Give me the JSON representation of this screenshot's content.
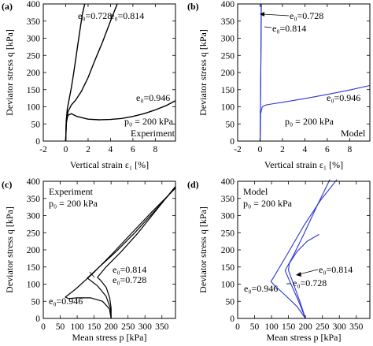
{
  "colors": {
    "experiment": "#000000",
    "model": "#2a35d6"
  },
  "chart_data": [
    {
      "panel": "(a)",
      "type": "line",
      "xlabel": "Vertical strain ε₁ [%]",
      "ylabel": "Deviator stress q [kPa]",
      "xlim": [
        -2,
        9.8
      ],
      "ylim": [
        0,
        400
      ],
      "xticks": [
        -2,
        0,
        2,
        4,
        6,
        8
      ],
      "yticks": [
        0,
        50,
        100,
        150,
        200,
        250,
        300,
        350,
        400
      ],
      "notes": [
        "p₀ = 200 kPa",
        "Experiment"
      ],
      "series": [
        {
          "name": "e₀=0.728",
          "x": [
            0,
            0.05,
            0.15,
            0.3,
            0.5,
            0.7,
            0.9,
            1.1,
            1.3,
            1.5,
            1.7
          ],
          "y": [
            0,
            60,
            95,
            120,
            155,
            195,
            240,
            285,
            330,
            372,
            400
          ]
        },
        {
          "name": "e₀=0.814",
          "x": [
            0,
            0.05,
            0.2,
            0.5,
            0.9,
            1.4,
            2.0,
            2.6,
            3.3,
            4.0,
            4.6
          ],
          "y": [
            0,
            50,
            85,
            105,
            120,
            145,
            185,
            235,
            290,
            350,
            400
          ]
        },
        {
          "name": "e₀=0.946",
          "x": [
            0,
            0.05,
            0.2,
            0.5,
            1.0,
            2.0,
            3.0,
            4.0,
            5.0,
            6.0,
            7.0,
            8.0,
            9.0,
            9.8
          ],
          "y": [
            0,
            55,
            75,
            80,
            72,
            64,
            62,
            63,
            66,
            72,
            80,
            91,
            104,
            118
          ]
        }
      ]
    },
    {
      "panel": "(b)",
      "type": "line",
      "xlabel": "Vertical strain ε₁ [%]",
      "ylabel": "Deviator stress q [kPa]",
      "xlim": [
        -2,
        9.8
      ],
      "ylim": [
        0,
        400
      ],
      "xticks": [
        -2,
        0,
        2,
        4,
        6,
        8
      ],
      "yticks": [
        0,
        50,
        100,
        150,
        200,
        250,
        300,
        350,
        400
      ],
      "notes": [
        "p₀  = 200 kPa",
        "Model"
      ],
      "series": [
        {
          "name": "e₀=0.728",
          "x": [
            0,
            0.04,
            0.08,
            0.1
          ],
          "y": [
            0,
            100,
            250,
            400
          ]
        },
        {
          "name": "e₀=0.814",
          "x": [
            0,
            0.04,
            0.08,
            0.12
          ],
          "y": [
            0,
            100,
            250,
            400
          ]
        },
        {
          "name": "e₀=0.946",
          "x": [
            0,
            0.05,
            0.2,
            0.5,
            1.0,
            2.0,
            4.0,
            6.0,
            8.0,
            9.8
          ],
          "y": [
            0,
            80,
            100,
            105,
            108,
            113,
            124,
            136,
            149,
            162
          ]
        }
      ]
    },
    {
      "panel": "(c)",
      "type": "line",
      "xlabel": "Mean stress p [kPa]",
      "ylabel": "Deviator stress q [kPa]",
      "xlim": [
        0,
        390
      ],
      "ylim": [
        0,
        400
      ],
      "xticks": [
        0,
        50,
        100,
        150,
        200,
        250,
        300,
        350
      ],
      "yticks": [
        0,
        50,
        100,
        150,
        200,
        250,
        300,
        350,
        400
      ],
      "notes": [
        "Experiment",
        "p₀  = 200 kPa"
      ],
      "series": [
        {
          "name": "e₀=0.728",
          "x": [
            200,
            200,
            196,
            186,
            170,
            160,
            185,
            230,
            280,
            335,
            390
          ],
          "y": [
            0,
            30,
            60,
            90,
            110,
            120,
            150,
            195,
            250,
            318,
            385
          ]
        },
        {
          "name": "e₀=0.814",
          "x": [
            200,
            198,
            185,
            160,
            140,
            130,
            165,
            215,
            270,
            330,
            390
          ],
          "y": [
            0,
            30,
            65,
            95,
            110,
            118,
            150,
            195,
            250,
            315,
            382
          ]
        },
        {
          "name": "e₀=0.946",
          "x": [
            200,
            195,
            175,
            140,
            100,
            75,
            65,
            95,
            145,
            200,
            260,
            320,
            390
          ],
          "y": [
            0,
            28,
            50,
            60,
            60,
            58,
            62,
            85,
            130,
            185,
            248,
            310,
            380
          ]
        }
      ]
    },
    {
      "panel": "(d)",
      "type": "line",
      "xlabel": "Mean stress p [kPa]",
      "ylabel": "Deviator stress q [kPa]",
      "xlim": [
        0,
        390
      ],
      "ylim": [
        0,
        400
      ],
      "xticks": [
        0,
        50,
        100,
        150,
        200,
        250,
        300,
        350
      ],
      "yticks": [
        0,
        50,
        100,
        150,
        200,
        250,
        300,
        350,
        400
      ],
      "notes": [
        "Model",
        "p₀  = 200 kPa"
      ],
      "series": [
        {
          "name": "e₀=0.728",
          "x": [
            200,
            185,
            165,
            150,
            152,
            175,
            205,
            240
          ],
          "y": [
            0,
            45,
            100,
            140,
            160,
            195,
            225,
            245
          ]
        },
        {
          "name": "e₀=0.814",
          "x": [
            200,
            180,
            155,
            140,
            160,
            195,
            235,
            272
          ],
          "y": [
            0,
            50,
            105,
            140,
            175,
            245,
            330,
            405
          ]
        },
        {
          "name": "e₀=0.946",
          "x": [
            200,
            175,
            140,
            110,
            98,
            105,
            145,
            195,
            245,
            293
          ],
          "y": [
            0,
            35,
            68,
            95,
            108,
            118,
            185,
            270,
            345,
            405
          ]
        }
      ]
    }
  ]
}
